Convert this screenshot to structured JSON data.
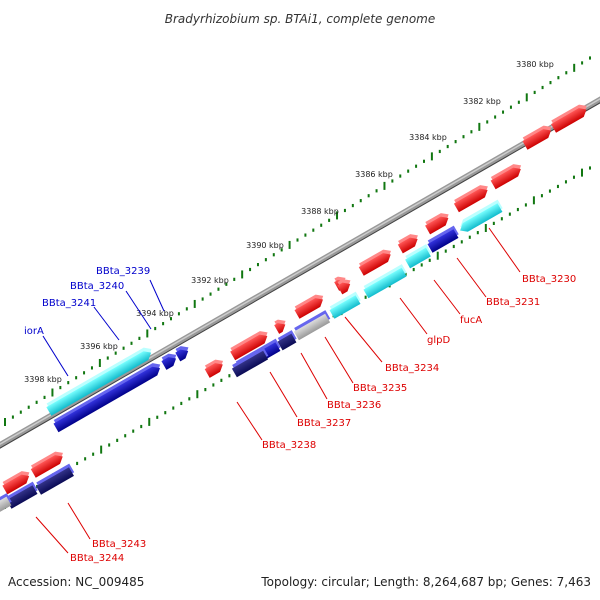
{
  "title": "Bradyrhizobium sp. BTAi1, complete genome",
  "footer": {
    "accession": "Accession: NC_009485",
    "topology": "Topology: circular; Length: 8,264,687 bp; Genes: 7,463"
  },
  "ticks": [
    "3380 kbp",
    "3382 kbp",
    "3384 kbp",
    "3386 kbp",
    "3388 kbp",
    "3390 kbp",
    "3392 kbp",
    "3394 kbp",
    "3396 kbp",
    "3398 kbp"
  ],
  "genes_red": [
    "BBta_3230",
    "BBta_3231",
    "fucA",
    "glpD",
    "BBta_3234",
    "BBta_3235",
    "BBta_3236",
    "BBta_3237",
    "BBta_3238",
    "BBta_3243",
    "BBta_3244"
  ],
  "genes_blue": [
    "BBta_3239",
    "BBta_3240",
    "BBta_3241",
    "iorA"
  ],
  "colors": {
    "forward_gene": "#ee1111",
    "reverse_gene": "#1111bb",
    "cyan_gene": "#22dddd",
    "label_red": "#dd0000",
    "label_blue": "#0000cc",
    "scale_dots": "#117711",
    "backbone": "#888888"
  }
}
